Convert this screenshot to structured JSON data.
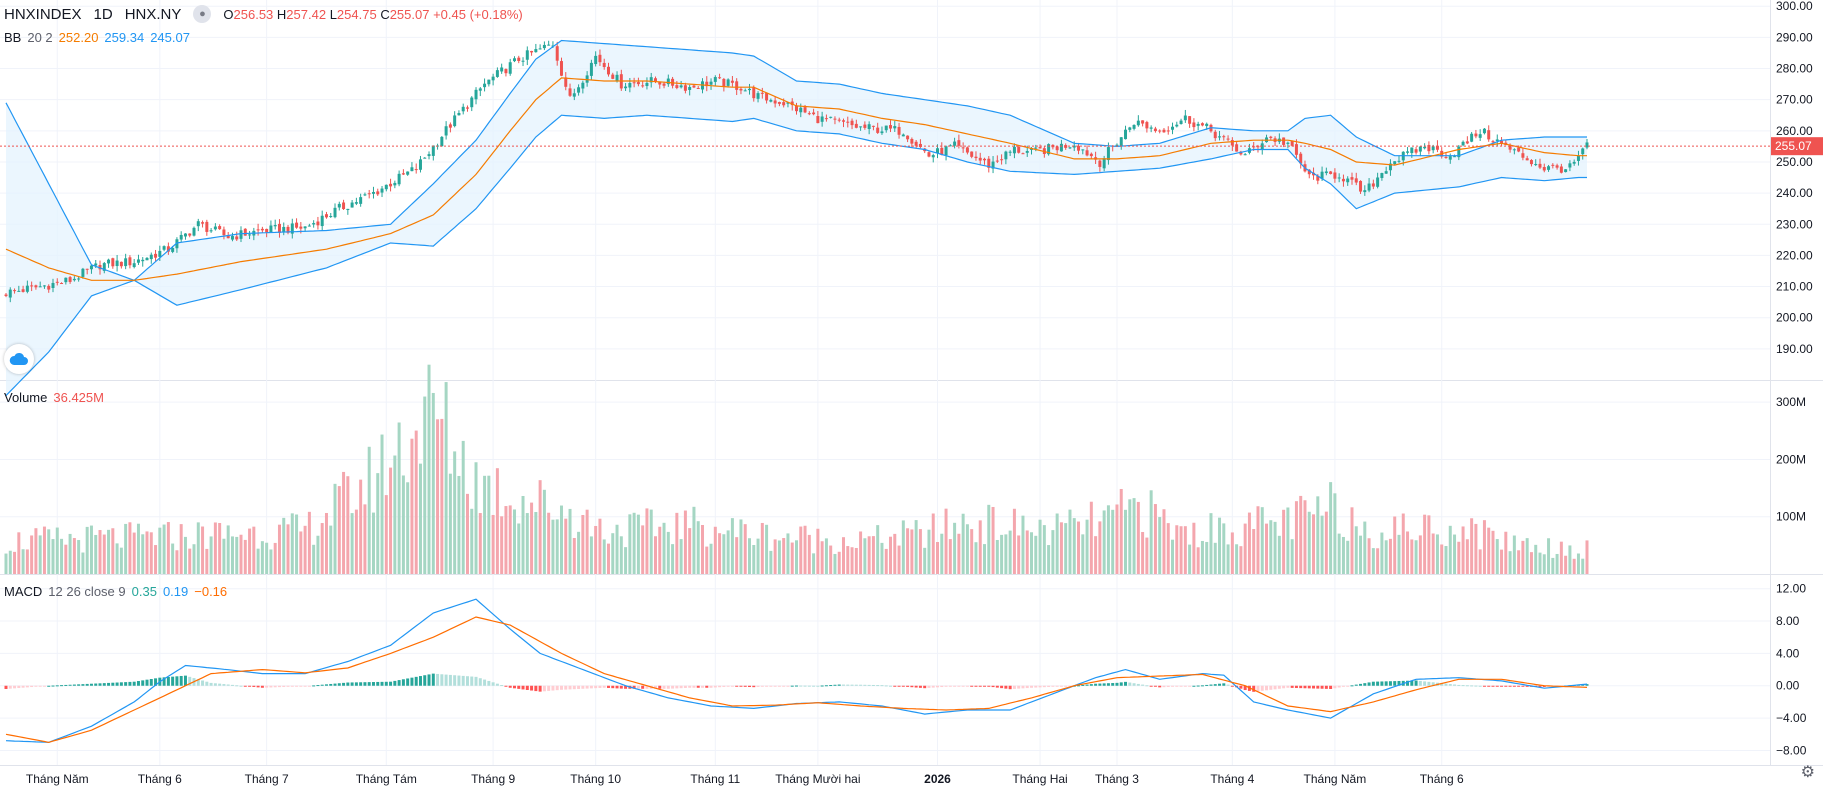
{
  "header": {
    "symbol": "HNXINDEX",
    "interval": "1D",
    "exchange": "HNX.NY",
    "ohlc": {
      "o_label": "O",
      "o": "256.53",
      "h_label": "H",
      "h": "257.42",
      "l_label": "L",
      "l": "254.75",
      "c_label": "C",
      "c": "255.07",
      "change": "+0.45 (+0.18%)"
    }
  },
  "bb_legend": {
    "name": "BB",
    "params": "20 2",
    "basis": "252.20",
    "upper": "259.34",
    "lower": "245.07"
  },
  "volume_legend": {
    "name": "Volume",
    "value": "36.425M"
  },
  "macd_legend": {
    "name": "MACD",
    "params": "12 26 close 9",
    "hist": "0.35",
    "macd": "0.19",
    "signal": "−0.16"
  },
  "colors": {
    "up": "#26a69a",
    "down": "#ef5350",
    "vol_up": "#a5d6c3",
    "vol_down": "#f4a6ad",
    "bb_band": "#2196f3",
    "bb_basis": "#f57c00",
    "bb_fill": "#e3f2fd",
    "macd_line": "#2196f3",
    "signal_line": "#ff6d00",
    "price_label": "#ef5350"
  },
  "icons": {
    "visibility": "eye-icon",
    "logo": "cloud-icon",
    "settings": "gear-icon"
  },
  "chart_data": [
    {
      "type": "candlestick",
      "pane": "price",
      "price_label": "255.07",
      "y_ticks": [
        "300.00",
        "290.00",
        "280.00",
        "270.00",
        "260.00",
        "250.00",
        "240.00",
        "230.00",
        "220.00",
        "210.00",
        "200.00",
        "190.00"
      ],
      "ylim": [
        180,
        302
      ],
      "bb_anchors": {
        "upper": [
          [
            0,
            269
          ],
          [
            10,
            243
          ],
          [
            20,
            217
          ],
          [
            30,
            212
          ],
          [
            40,
            224
          ],
          [
            55,
            227
          ],
          [
            75,
            228
          ],
          [
            90,
            230
          ],
          [
            100,
            243
          ],
          [
            110,
            257
          ],
          [
            118,
            272
          ],
          [
            124,
            283
          ],
          [
            130,
            289
          ],
          [
            140,
            288
          ],
          [
            150,
            287
          ],
          [
            160,
            286
          ],
          [
            170,
            285
          ],
          [
            175,
            284
          ],
          [
            185,
            276
          ],
          [
            195,
            275
          ],
          [
            205,
            272
          ],
          [
            215,
            270
          ],
          [
            225,
            268
          ],
          [
            235,
            265
          ],
          [
            250,
            256
          ],
          [
            260,
            255
          ],
          [
            270,
            256
          ],
          [
            282,
            261
          ],
          [
            292,
            260
          ],
          [
            300,
            260
          ],
          [
            304,
            264
          ],
          [
            310,
            265
          ],
          [
            316,
            258
          ],
          [
            325,
            252
          ],
          [
            340,
            252
          ],
          [
            350,
            257
          ],
          [
            360,
            258
          ],
          [
            368,
            258
          ],
          [
            370,
            258
          ]
        ],
        "basis": [
          [
            0,
            222
          ],
          [
            10,
            216
          ],
          [
            20,
            212
          ],
          [
            30,
            212
          ],
          [
            40,
            214
          ],
          [
            55,
            218
          ],
          [
            75,
            222
          ],
          [
            90,
            227
          ],
          [
            100,
            233
          ],
          [
            110,
            246
          ],
          [
            118,
            260
          ],
          [
            124,
            270
          ],
          [
            130,
            277
          ],
          [
            140,
            276
          ],
          [
            150,
            276
          ],
          [
            160,
            275
          ],
          [
            170,
            274
          ],
          [
            175,
            274
          ],
          [
            185,
            268
          ],
          [
            195,
            267
          ],
          [
            205,
            264
          ],
          [
            215,
            262
          ],
          [
            225,
            259
          ],
          [
            235,
            256
          ],
          [
            250,
            251
          ],
          [
            260,
            251
          ],
          [
            270,
            252
          ],
          [
            282,
            256
          ],
          [
            292,
            257
          ],
          [
            300,
            257
          ],
          [
            304,
            256
          ],
          [
            310,
            254
          ],
          [
            316,
            250
          ],
          [
            325,
            249
          ],
          [
            340,
            254
          ],
          [
            350,
            256
          ],
          [
            360,
            253
          ],
          [
            368,
            252
          ],
          [
            370,
            252
          ]
        ],
        "lower": [
          [
            0,
            175
          ],
          [
            10,
            189
          ],
          [
            20,
            207
          ],
          [
            30,
            212
          ],
          [
            40,
            204
          ],
          [
            55,
            209
          ],
          [
            75,
            216
          ],
          [
            90,
            224
          ],
          [
            100,
            223
          ],
          [
            110,
            235
          ],
          [
            118,
            248
          ],
          [
            124,
            258
          ],
          [
            130,
            265
          ],
          [
            140,
            264
          ],
          [
            150,
            265
          ],
          [
            160,
            264
          ],
          [
            170,
            263
          ],
          [
            175,
            264
          ],
          [
            185,
            260
          ],
          [
            195,
            259
          ],
          [
            205,
            256
          ],
          [
            215,
            254
          ],
          [
            225,
            250
          ],
          [
            235,
            247
          ],
          [
            250,
            246
          ],
          [
            260,
            247
          ],
          [
            270,
            248
          ],
          [
            282,
            251
          ],
          [
            292,
            254
          ],
          [
            300,
            254
          ],
          [
            304,
            248
          ],
          [
            310,
            243
          ],
          [
            316,
            235
          ],
          [
            325,
            240
          ],
          [
            340,
            242
          ],
          [
            350,
            245
          ],
          [
            360,
            244
          ],
          [
            368,
            245
          ],
          [
            370,
            245
          ]
        ]
      },
      "close_anchors": [
        [
          0,
          208
        ],
        [
          8,
          210
        ],
        [
          15,
          212
        ],
        [
          22,
          217
        ],
        [
          30,
          218
        ],
        [
          38,
          222
        ],
        [
          45,
          230
        ],
        [
          52,
          226
        ],
        [
          60,
          228
        ],
        [
          70,
          229
        ],
        [
          78,
          235
        ],
        [
          86,
          240
        ],
        [
          96,
          248
        ],
        [
          104,
          262
        ],
        [
          112,
          275
        ],
        [
          120,
          283
        ],
        [
          128,
          288
        ],
        [
          132,
          270
        ],
        [
          138,
          284
        ],
        [
          144,
          275
        ],
        [
          152,
          276
        ],
        [
          160,
          274
        ],
        [
          166,
          276
        ],
        [
          172,
          274
        ],
        [
          176,
          271
        ],
        [
          182,
          269
        ],
        [
          190,
          264
        ],
        [
          200,
          261
        ],
        [
          210,
          260
        ],
        [
          216,
          252
        ],
        [
          222,
          255
        ],
        [
          230,
          249
        ],
        [
          236,
          254
        ],
        [
          240,
          253
        ],
        [
          250,
          256
        ],
        [
          256,
          250
        ],
        [
          264,
          263
        ],
        [
          270,
          260
        ],
        [
          276,
          264
        ],
        [
          282,
          260
        ],
        [
          290,
          252
        ],
        [
          295,
          258
        ],
        [
          300,
          256
        ],
        [
          305,
          245
        ],
        [
          312,
          246
        ],
        [
          318,
          240
        ],
        [
          324,
          250
        ],
        [
          332,
          255
        ],
        [
          338,
          252
        ],
        [
          345,
          260
        ],
        [
          352,
          254
        ],
        [
          360,
          248
        ],
        [
          366,
          248
        ],
        [
          370,
          255
        ]
      ]
    },
    {
      "type": "bar",
      "pane": "volume",
      "y_ticks": [
        "300M",
        "200M",
        "100M"
      ],
      "ylim": [
        0,
        330
      ],
      "vol_anchors": [
        [
          0,
          60
        ],
        [
          40,
          70
        ],
        [
          70,
          80
        ],
        [
          85,
          170
        ],
        [
          100,
          300
        ],
        [
          110,
          170
        ],
        [
          120,
          140
        ],
        [
          130,
          120
        ],
        [
          140,
          80
        ],
        [
          160,
          90
        ],
        [
          170,
          80
        ],
        [
          180,
          70
        ],
        [
          200,
          60
        ],
        [
          215,
          75
        ],
        [
          225,
          95
        ],
        [
          245,
          80
        ],
        [
          258,
          100
        ],
        [
          265,
          125
        ],
        [
          275,
          75
        ],
        [
          300,
          95
        ],
        [
          310,
          120
        ],
        [
          320,
          80
        ],
        [
          340,
          85
        ],
        [
          355,
          55
        ],
        [
          370,
          45
        ]
      ]
    },
    {
      "type": "line",
      "pane": "macd",
      "y_ticks": [
        "12.00",
        "8.00",
        "4.00",
        "0.00",
        "−4.00",
        "−8.00"
      ],
      "ylim": [
        -9.8,
        13.2
      ],
      "macd_anchors": [
        [
          0,
          -6.8
        ],
        [
          10,
          -7
        ],
        [
          20,
          -5
        ],
        [
          30,
          -2
        ],
        [
          36,
          0.5
        ],
        [
          42,
          2.5
        ],
        [
          50,
          2.1
        ],
        [
          60,
          1.5
        ],
        [
          70,
          1.5
        ],
        [
          80,
          3
        ],
        [
          90,
          5
        ],
        [
          100,
          9
        ],
        [
          110,
          10.7
        ],
        [
          118,
          7
        ],
        [
          125,
          4
        ],
        [
          135,
          2
        ],
        [
          145,
          0
        ],
        [
          155,
          -1.5
        ],
        [
          165,
          -2.5
        ],
        [
          175,
          -2.8
        ],
        [
          185,
          -2.2
        ],
        [
          195,
          -2
        ],
        [
          205,
          -2.5
        ],
        [
          215,
          -3.5
        ],
        [
          225,
          -3
        ],
        [
          235,
          -3
        ],
        [
          245,
          -1
        ],
        [
          255,
          1
        ],
        [
          262,
          2
        ],
        [
          270,
          0.8
        ],
        [
          280,
          1.5
        ],
        [
          285,
          1.3
        ],
        [
          292,
          -2
        ],
        [
          300,
          -3
        ],
        [
          310,
          -4
        ],
        [
          320,
          -1
        ],
        [
          330,
          0.8
        ],
        [
          340,
          1
        ],
        [
          350,
          0.6
        ],
        [
          360,
          -0.3
        ],
        [
          370,
          0.2
        ]
      ],
      "signal_anchors": [
        [
          0,
          -6
        ],
        [
          10,
          -7
        ],
        [
          20,
          -5.5
        ],
        [
          30,
          -3
        ],
        [
          40,
          -0.5
        ],
        [
          48,
          1.5
        ],
        [
          60,
          2
        ],
        [
          70,
          1.6
        ],
        [
          80,
          2.2
        ],
        [
          90,
          4
        ],
        [
          100,
          6
        ],
        [
          110,
          8.5
        ],
        [
          118,
          7.5
        ],
        [
          130,
          4
        ],
        [
          140,
          1.5
        ],
        [
          150,
          0
        ],
        [
          160,
          -1.5
        ],
        [
          170,
          -2.5
        ],
        [
          180,
          -2.4
        ],
        [
          190,
          -2.1
        ],
        [
          200,
          -2.5
        ],
        [
          210,
          -2.8
        ],
        [
          220,
          -3
        ],
        [
          230,
          -2.8
        ],
        [
          240,
          -1.5
        ],
        [
          250,
          0
        ],
        [
          260,
          1
        ],
        [
          270,
          1.2
        ],
        [
          280,
          1.4
        ],
        [
          290,
          0
        ],
        [
          300,
          -2.5
        ],
        [
          310,
          -3.2
        ],
        [
          320,
          -2
        ],
        [
          330,
          -0.5
        ],
        [
          340,
          0.8
        ],
        [
          350,
          0.8
        ],
        [
          360,
          0
        ],
        [
          370,
          -0.2
        ]
      ]
    }
  ],
  "x_axis": {
    "bar_count": 371,
    "labels": [
      {
        "text": "Tháng Năm",
        "bar": 12,
        "bold": false
      },
      {
        "text": "Tháng 6",
        "bar": 36,
        "bold": false
      },
      {
        "text": "Tháng 7",
        "bar": 61,
        "bold": false
      },
      {
        "text": "Tháng Tám",
        "bar": 89,
        "bold": false
      },
      {
        "text": "Tháng 9",
        "bar": 114,
        "bold": false
      },
      {
        "text": "Tháng 10",
        "bar": 138,
        "bold": false
      },
      {
        "text": "Tháng 11",
        "bar": 166,
        "bold": false
      },
      {
        "text": "Tháng Mười hai",
        "bar": 190,
        "bold": false
      },
      {
        "text": "2026",
        "bar": 218,
        "bold": true
      },
      {
        "text": "Tháng Hai",
        "bar": 242,
        "bold": false
      },
      {
        "text": "Tháng 3",
        "bar": 260,
        "bold": false
      },
      {
        "text": "Tháng 4",
        "bar": 287,
        "bold": false
      },
      {
        "text": "Tháng Năm",
        "bar": 311,
        "bold": false
      },
      {
        "text": "Tháng 6",
        "bar": 336,
        "bold": false
      }
    ]
  }
}
